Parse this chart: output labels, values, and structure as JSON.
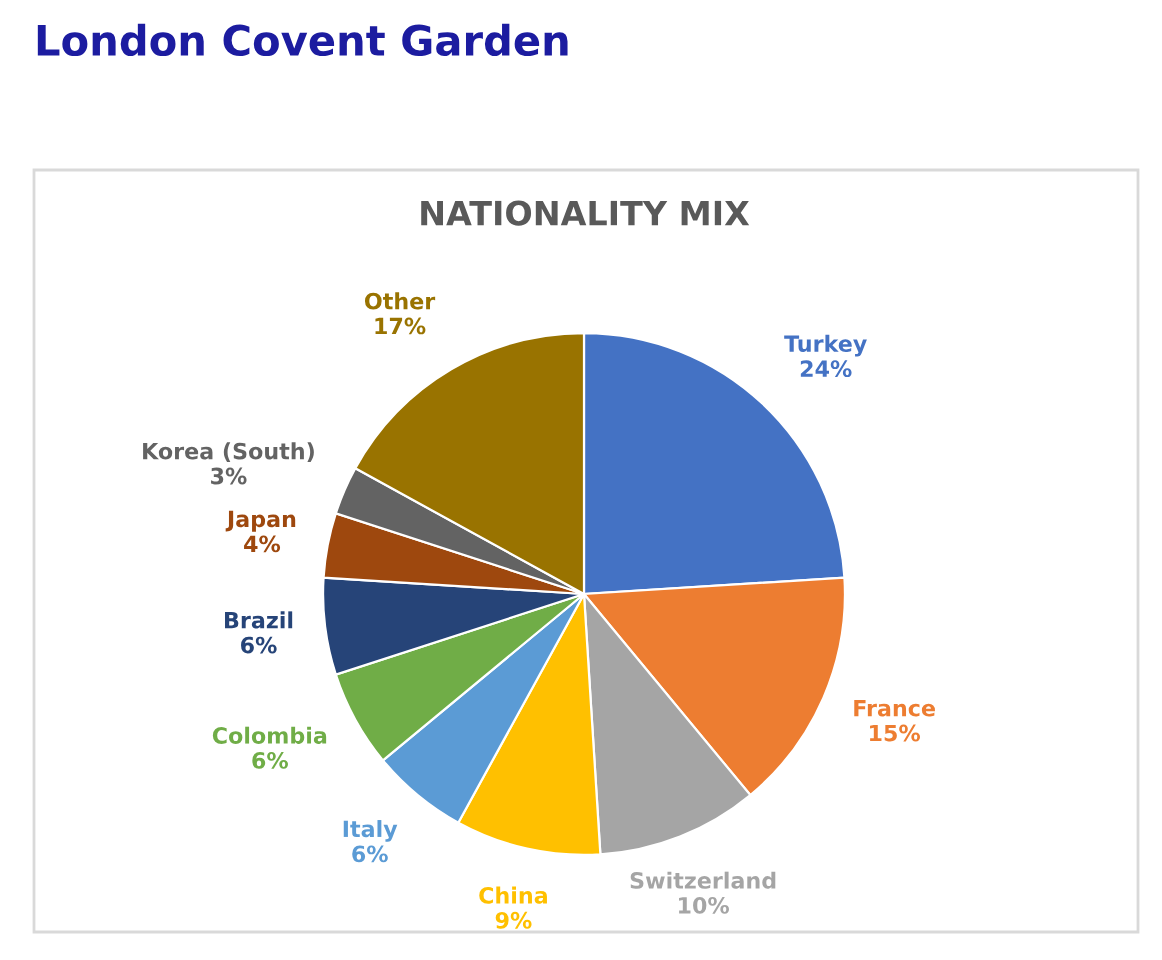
{
  "chart_data": {
    "type": "pie",
    "title": "London Covent Garden",
    "subtitle": "NATIONALITY MIX",
    "categories": [
      "Turkey",
      "France",
      "Switzerland",
      "China",
      "Italy",
      "Colombia",
      "Brazil",
      "Japan",
      "Korea (South)",
      "Other"
    ],
    "values": [
      24,
      15,
      10,
      9,
      6,
      6,
      6,
      4,
      3,
      17
    ],
    "value_labels": [
      "24%",
      "15%",
      "10%",
      "9%",
      "6%",
      "6%",
      "6%",
      "4%",
      "3%",
      "17%"
    ],
    "colors": [
      "#4472c4",
      "#ed7d31",
      "#a5a5a5",
      "#ffc000",
      "#5b9bd5",
      "#70ad47",
      "#264478",
      "#9e480e",
      "#636363",
      "#997300"
    ],
    "legend": false
  }
}
